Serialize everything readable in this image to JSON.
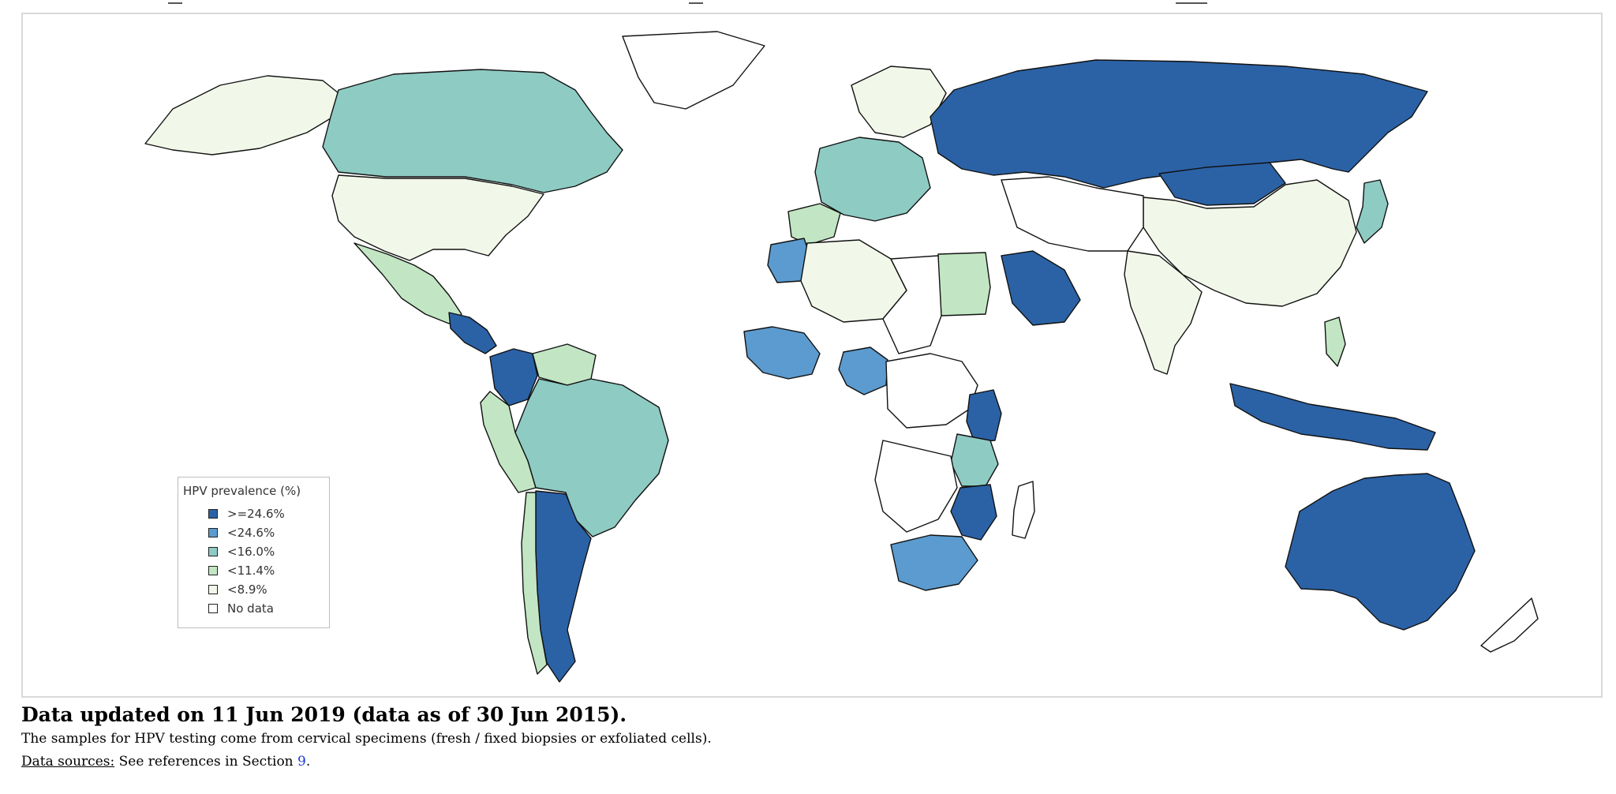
{
  "legend": {
    "title": "HPV prevalence (%)",
    "items": [
      {
        "label": ">=24.6%",
        "color": "#2b62a6"
      },
      {
        "label": "<24.6%",
        "color": "#5b9bcf"
      },
      {
        "label": "<16.0%",
        "color": "#8ecbc3"
      },
      {
        "label": "<11.4%",
        "color": "#c2e6c3"
      },
      {
        "label": "<8.9%",
        "color": "#f1f8e9"
      },
      {
        "label": "No data",
        "color": "#ffffff"
      }
    ]
  },
  "caption": {
    "title": "Data updated on 11 Jun 2019 (data as of 30 Jun 2015).",
    "note": "The samples for HPV testing come from cervical specimens (fresh / fixed biopsies or exfoliated cells).",
    "sources_label": "Data sources:",
    "sources_text": " See references in Section ",
    "sources_link": "9",
    "sources_end": "."
  },
  "regions": [
    {
      "name": "alaska",
      "class": "<8.9%"
    },
    {
      "name": "canada",
      "class": "<16.0%"
    },
    {
      "name": "usa",
      "class": "<8.9%"
    },
    {
      "name": "mexico",
      "class": "<11.4%"
    },
    {
      "name": "central-america",
      "class": ">=24.6%"
    },
    {
      "name": "colombia",
      "class": ">=24.6%"
    },
    {
      "name": "venezuela",
      "class": "<11.4%"
    },
    {
      "name": "brazil",
      "class": "<16.0%"
    },
    {
      "name": "peru",
      "class": "<11.4%"
    },
    {
      "name": "argentina",
      "class": ">=24.6%"
    },
    {
      "name": "chile",
      "class": "<11.4%"
    },
    {
      "name": "greenland",
      "class": "No data"
    },
    {
      "name": "iberia",
      "class": "<11.4%"
    },
    {
      "name": "western-europe",
      "class": "<16.0%"
    },
    {
      "name": "scandinavia",
      "class": "<8.9%"
    },
    {
      "name": "russia",
      "class": ">=24.6%"
    },
    {
      "name": "mongolia",
      "class": ">=24.6%"
    },
    {
      "name": "china",
      "class": "<8.9%"
    },
    {
      "name": "india",
      "class": "<8.9%"
    },
    {
      "name": "saudi-arabia",
      "class": ">=24.6%"
    },
    {
      "name": "egypt",
      "class": "<11.4%"
    },
    {
      "name": "algeria",
      "class": "<8.9%"
    },
    {
      "name": "morocco",
      "class": "<24.6%"
    },
    {
      "name": "nigeria",
      "class": "<24.6%"
    },
    {
      "name": "west-africa",
      "class": "<24.6%"
    },
    {
      "name": "kenya",
      "class": ">=24.6%"
    },
    {
      "name": "tanzania",
      "class": "<16.0%"
    },
    {
      "name": "mozambique",
      "class": ">=24.6%"
    },
    {
      "name": "south-africa",
      "class": "<24.6%"
    },
    {
      "name": "indonesia",
      "class": ">=24.6%"
    },
    {
      "name": "philippines",
      "class": "<11.4%"
    },
    {
      "name": "japan",
      "class": "<16.0%"
    },
    {
      "name": "australia",
      "class": ">=24.6%"
    },
    {
      "name": "new-zealand",
      "class": "No data"
    }
  ]
}
